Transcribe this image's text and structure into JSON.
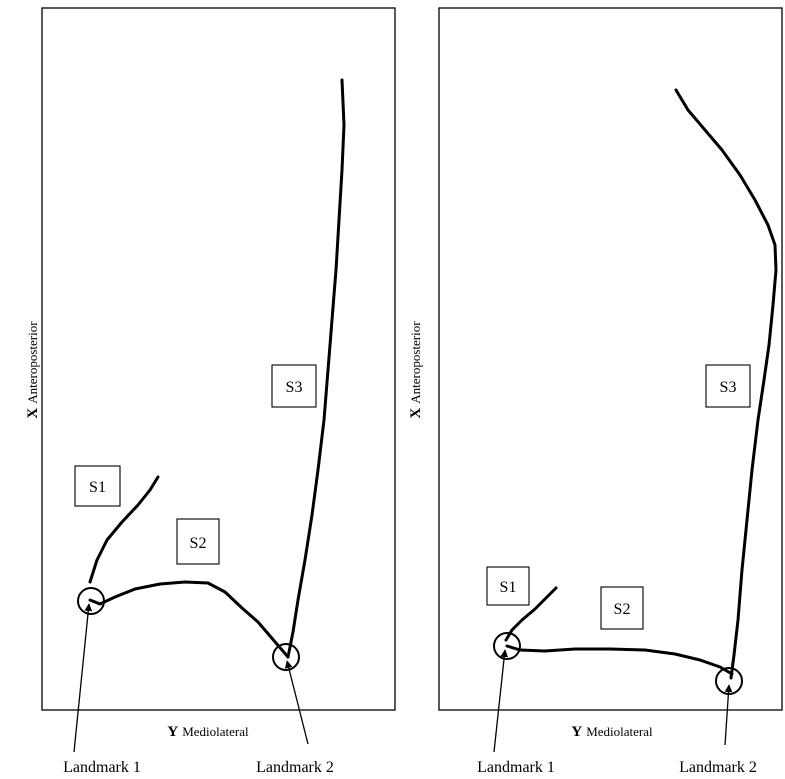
{
  "panels": [
    {
      "x_axis_letter": "X",
      "x_axis_label": "Anteroposterior",
      "y_axis_letter": "Y",
      "y_axis_label": "Mediolateral",
      "segments": [
        "S1",
        "S2",
        "S3"
      ],
      "landmarks": [
        "Landmark 1",
        "Landmark 2"
      ]
    },
    {
      "x_axis_letter": "X",
      "x_axis_label": "Anteroposterior",
      "y_axis_letter": "Y",
      "y_axis_label": "Mediolateral",
      "segments": [
        "S1",
        "S2",
        "S3"
      ],
      "landmarks": [
        "Landmark 1",
        "Landmark 2"
      ]
    }
  ]
}
